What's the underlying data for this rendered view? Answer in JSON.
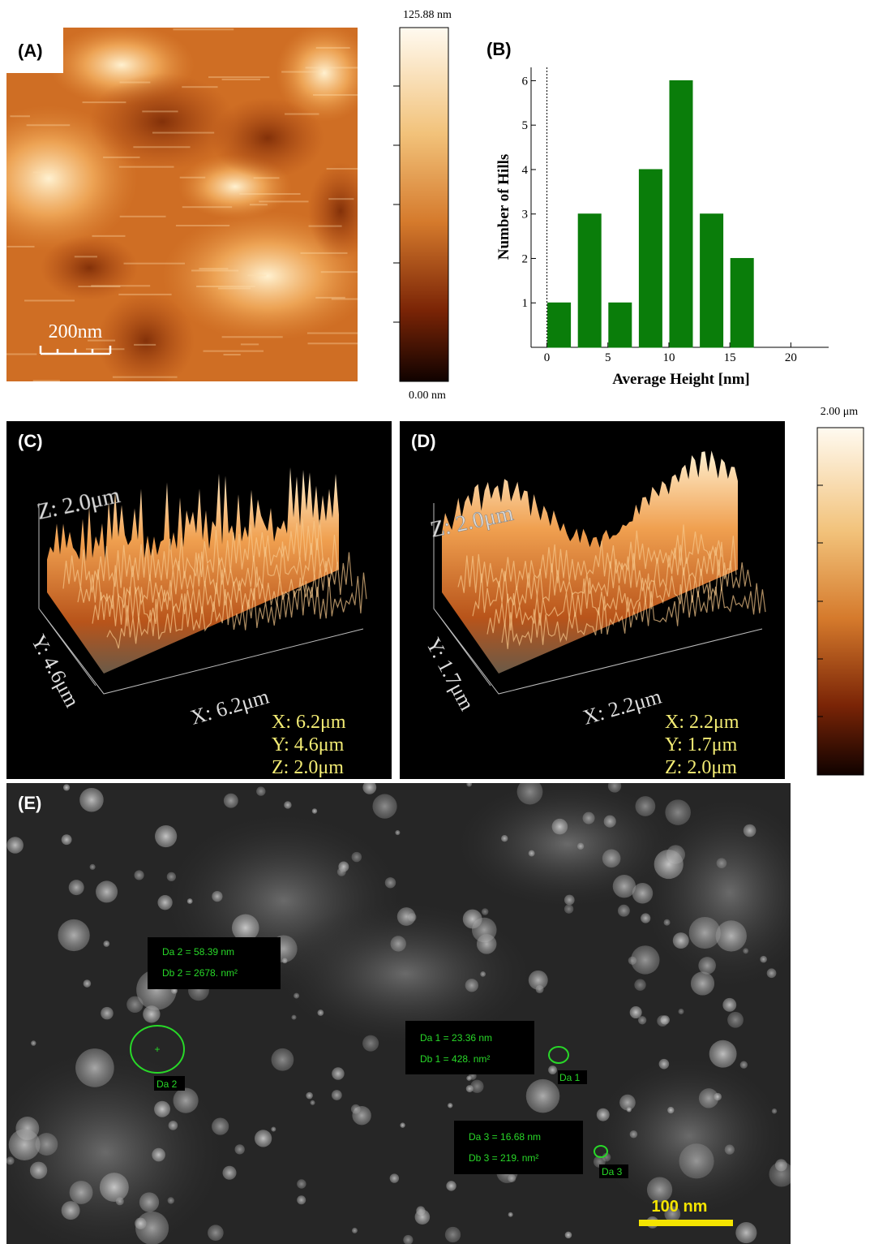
{
  "panel_a": {
    "label": "(A)",
    "scale_bar": "200nm",
    "colorbar_max": "125.88 nm",
    "colorbar_min": "0.00 nm"
  },
  "chart_data": {
    "type": "bar",
    "label": "(B)",
    "x_label": "Average Height [nm]",
    "y_label": "Number of Hills",
    "x": [
      1,
      3.5,
      6,
      8.5,
      11,
      13.5,
      16,
      18.5,
      21
    ],
    "values": [
      1,
      3,
      1,
      4,
      6,
      3,
      2,
      0,
      0
    ],
    "color": "#0a7d0a",
    "xlim": [
      -1.3,
      23.1
    ],
    "xticks": [
      0,
      5,
      10,
      15,
      20
    ],
    "ylim": [
      0,
      6.3
    ],
    "yticks": [
      1,
      2,
      3,
      4,
      5,
      6
    ]
  },
  "panel_c": {
    "label": "(C)",
    "z_axis": "Z: 2.0μm",
    "y_axis": "Y: 4.6μm",
    "x_axis": "X: 6.2μm",
    "legend": [
      "X: 6.2μm",
      "Y: 4.6μm",
      "Z: 2.0μm"
    ]
  },
  "panel_d": {
    "label": "(D)",
    "z_axis": "Z: 2.0μm",
    "y_axis": "Y: 1.7μm",
    "x_axis": "X: 2.2μm",
    "legend": [
      "X: 2.2μm",
      "Y: 1.7μm",
      "Z: 2.0μm"
    ],
    "colorbar_max": "2.00 μm"
  },
  "panel_e": {
    "label": "(E)",
    "scale_bar": "100 nm",
    "measurements": [
      {
        "da": "Da 2 = 58.39 nm",
        "db": "Db 2 =  2678. nm²",
        "tag": "Da 2"
      },
      {
        "da": "Da 1 = 23.36 nm",
        "db": "Db 1 =   428. nm²",
        "tag": "Da 1"
      },
      {
        "da": "Da 3 = 16.68 nm",
        "db": "Db 3 =   219. nm²",
        "tag": "Da 3"
      }
    ]
  }
}
